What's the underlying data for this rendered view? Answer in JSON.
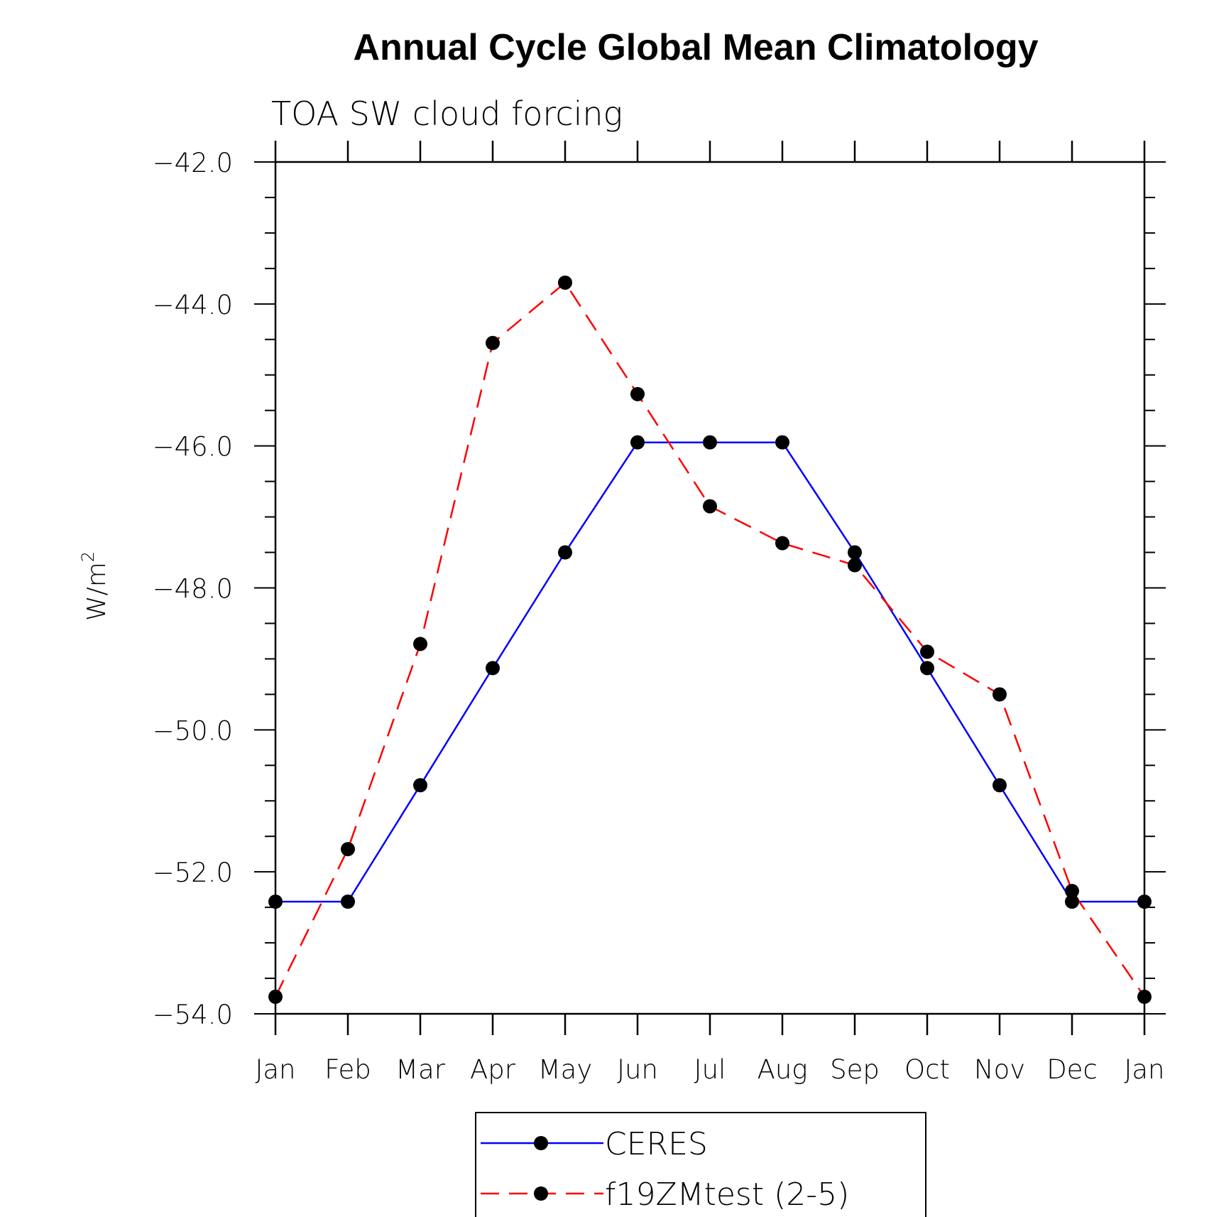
{
  "chart_data": {
    "type": "line",
    "title": "Annual Cycle Global Mean Climatology",
    "subtitle": "TOA SW cloud forcing",
    "ylabel": "W/m",
    "ylabel_superscript": "2",
    "xlabel": "",
    "categories": [
      "Jan",
      "Feb",
      "Mar",
      "Apr",
      "May",
      "Jun",
      "Jul",
      "Aug",
      "Sep",
      "Oct",
      "Nov",
      "Dec",
      "Jan"
    ],
    "ylim": [
      -54.0,
      -42.0
    ],
    "yticks": [
      "-42.0",
      "-44.0",
      "-46.0",
      "-48.0",
      "-50.0",
      "-52.0",
      "-54.0"
    ],
    "ytick_values": [
      -42,
      -44,
      -46,
      -48,
      -50,
      -52,
      -54
    ],
    "series": [
      {
        "name": "CERES",
        "color": "#0000ff",
        "dash": "solid",
        "values": [
          -52.42,
          -52.42,
          -50.78,
          -49.13,
          -47.5,
          -45.95,
          -45.95,
          -45.95,
          -47.5,
          -49.13,
          -50.78,
          -52.42,
          -52.42
        ]
      },
      {
        "name": "f19ZMtest (2-5)",
        "color": "#ff0000",
        "dash": "dashed",
        "values": [
          -53.76,
          -51.68,
          -48.79,
          -44.55,
          -43.7,
          -45.27,
          -46.85,
          -47.37,
          -47.68,
          -48.9,
          -49.5,
          -52.27,
          -53.76
        ]
      }
    ],
    "legend": {
      "placement": "bottom-center",
      "entries": [
        "CERES",
        "f19ZMtest (2-5)"
      ]
    },
    "grid": false
  }
}
